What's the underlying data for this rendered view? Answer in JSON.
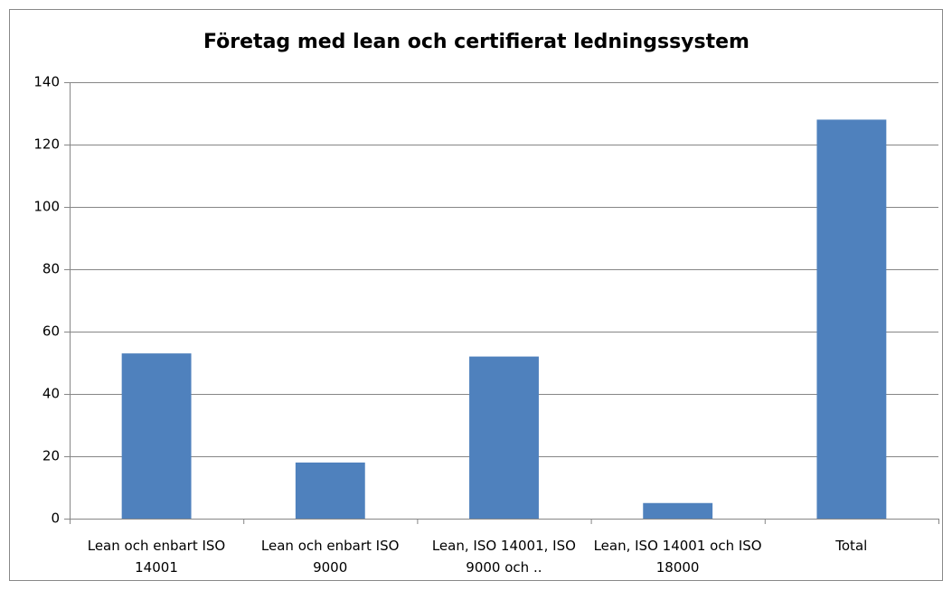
{
  "chart_data": {
    "type": "bar",
    "title": "Företag med lean och certifierat ledningssystem",
    "categories": [
      "Lean och enbart ISO 14001",
      "Lean och enbart ISO 9000",
      "Lean, ISO 14001, ISO 9000 och ..",
      "Lean, ISO 14001 och ISO 18000",
      "Total"
    ],
    "values": [
      53,
      18,
      52,
      5,
      128
    ],
    "color": "#4f81bd",
    "ylim": [
      0,
      140
    ],
    "yticks": [
      0,
      20,
      40,
      60,
      80,
      100,
      120,
      140
    ],
    "grid": true
  }
}
